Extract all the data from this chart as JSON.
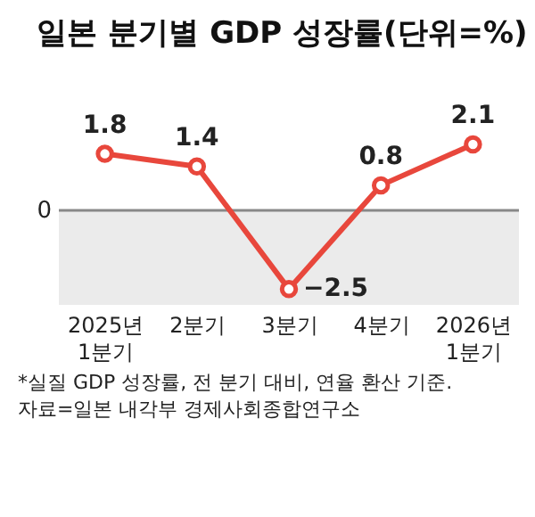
{
  "chart_data": {
    "type": "line",
    "title": "일본 분기별 GDP 성장률(단위=%)",
    "categories": [
      "2025년\n1분기",
      "2분기",
      "3분기",
      "4분기",
      "2026년\n1분기"
    ],
    "series": [
      {
        "color": "#e8473c",
        "values": [
          1.8,
          1.4,
          -2.5,
          0.8,
          2.1
        ]
      }
    ],
    "marker": "circle",
    "data_labels": true,
    "ref_lines": [
      {
        "axis": "y",
        "value": 0,
        "label": "0",
        "color": "#888888"
      }
    ],
    "bands": [
      {
        "axis": "y",
        "from": -3,
        "to": 0,
        "color": "#ebebeb"
      }
    ],
    "annotations": [
      "*실질 GDP 성장률, 전 분기 대비, 연율 환산 기준.",
      "자료=일본 내각부 경제사회종합연구소"
    ]
  }
}
